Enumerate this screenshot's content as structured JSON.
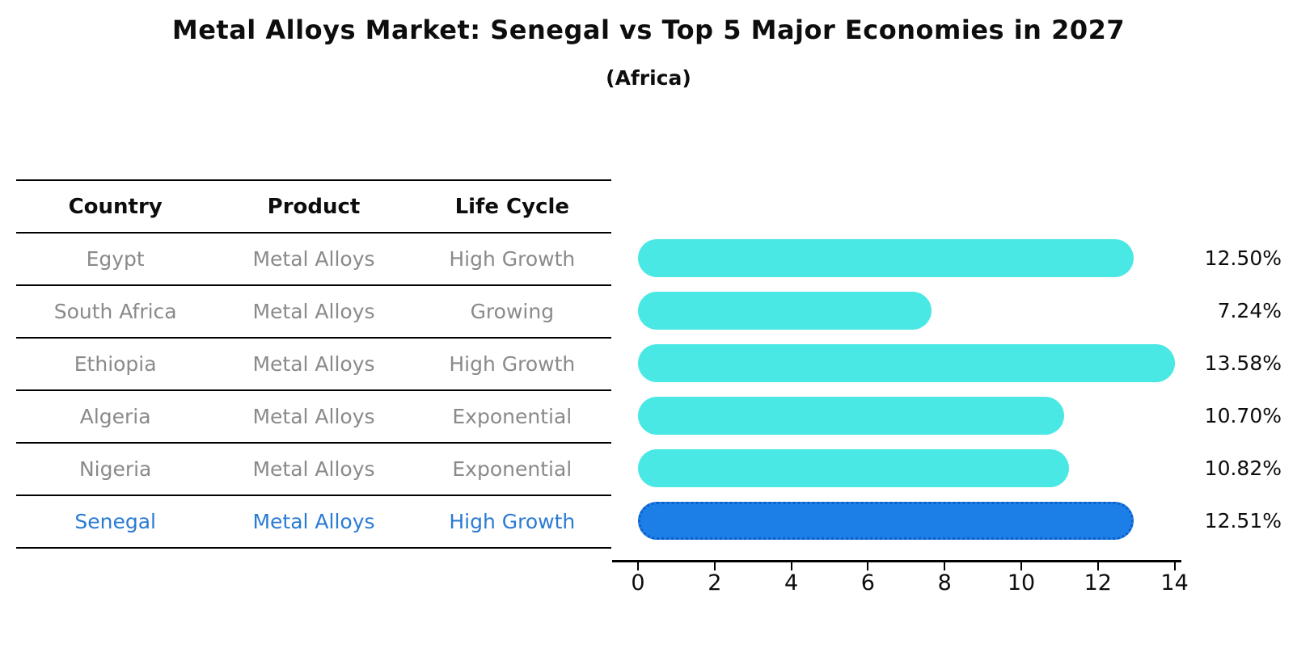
{
  "title": "Metal Alloys Market: Senegal vs Top 5 Major Economies in 2027",
  "subtitle": "(Africa)",
  "table": {
    "headers": [
      "Country",
      "Product",
      "Life Cycle"
    ],
    "rows": [
      {
        "country": "Egypt",
        "product": "Metal Alloys",
        "life_cycle": "High Growth",
        "highlight": false
      },
      {
        "country": "South Africa",
        "product": "Metal Alloys",
        "life_cycle": "Growing",
        "highlight": false
      },
      {
        "country": "Ethiopia",
        "product": "Metal Alloys",
        "life_cycle": "High Growth",
        "highlight": false
      },
      {
        "country": "Algeria",
        "product": "Metal Alloys",
        "life_cycle": "Exponential",
        "highlight": false
      },
      {
        "country": "Nigeria",
        "product": "Metal Alloys",
        "life_cycle": "Exponential",
        "highlight": false
      },
      {
        "country": "Senegal",
        "product": "Metal Alloys",
        "life_cycle": "High Growth",
        "highlight": true
      }
    ]
  },
  "chart_data": {
    "type": "bar",
    "orientation": "horizontal",
    "title": "Metal Alloys Market: Senegal vs Top 5 Major Economies in 2027",
    "subtitle": "(Africa)",
    "categories": [
      "Egypt",
      "South Africa",
      "Ethiopia",
      "Algeria",
      "Nigeria",
      "Senegal"
    ],
    "values": [
      12.5,
      7.24,
      13.58,
      10.7,
      10.82,
      12.51
    ],
    "value_labels": [
      "12.50%",
      "7.24%",
      "13.58%",
      "10.70%",
      "10.82%",
      "12.51%"
    ],
    "highlight_index": 5,
    "xlim": [
      0,
      14
    ],
    "x_ticks": [
      0,
      2,
      4,
      6,
      8,
      10,
      12,
      14
    ],
    "x_tick_labels": [
      "0",
      "2",
      "4",
      "6",
      "8",
      "10",
      "12",
      "14"
    ],
    "grid": false,
    "legend": false,
    "bar_color": "#4ae8e4",
    "highlight_bar_color": "#1c7fe8",
    "highlight_border_color": "#0e5fc6",
    "highlight_text_color": "#2a7bd4",
    "row_text_color": "#8a8a8a",
    "text_color": "#0d0d0d"
  }
}
